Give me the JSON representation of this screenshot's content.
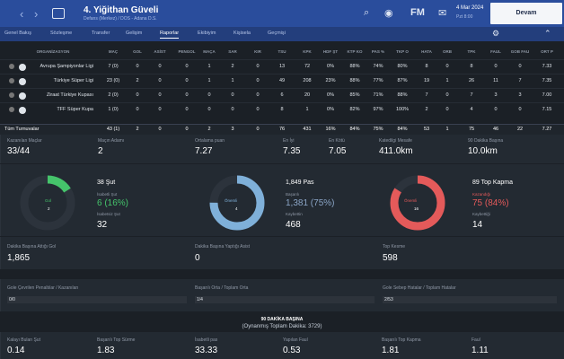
{
  "header": {
    "player_name": "4. Yiğithan Güveli",
    "player_sub": "Defans (Merkez) / DOS - Adana D.S.",
    "date": "4 Mar 2024",
    "time": "Pzt 8:00",
    "continue": "Devam",
    "icons": [
      "back-icon",
      "forward-icon",
      "crest-icon",
      "search-icon",
      "globe-icon",
      "fm-icon",
      "mail-icon",
      "settings-icon"
    ]
  },
  "tabs": [
    "Genel Bakış",
    "Sözleşme",
    "Transfer",
    "Gelişim",
    "Raporlar",
    "Ekibiyim",
    "Kişisela",
    "Geçmişi"
  ],
  "table": {
    "columns": [
      "ORGANİZASYON",
      "MAÇ",
      "GOL",
      "ASİST",
      "PENGOL",
      "MAÇA",
      "SAR",
      "KIR",
      "TSU",
      "KPK",
      "HDF ŞT",
      "KTP KO",
      "PAS %",
      "TKP O",
      "HATA",
      "ORB",
      "TPK",
      "FAUL",
      "GOB FAU",
      "ORT P"
    ],
    "rows": [
      [
        "Avrupa Şampiyonlar Ligi",
        "7 (0)",
        "0",
        "0",
        "0",
        "1",
        "2",
        "0",
        "13",
        "72",
        "0%",
        "88%",
        "74%",
        "80%",
        "8",
        "0",
        "8",
        "0",
        "0",
        "7.33"
      ],
      [
        "Türkiye Süper Ligi",
        "23 (0)",
        "2",
        "0",
        "0",
        "1",
        "1",
        "0",
        "49",
        "208",
        "23%",
        "88%",
        "77%",
        "87%",
        "19",
        "1",
        "26",
        "11",
        "7",
        "7.35"
      ],
      [
        "Ziraat Türkiye Kupası",
        "2 (0)",
        "0",
        "0",
        "0",
        "0",
        "0",
        "0",
        "6",
        "20",
        "0%",
        "85%",
        "71%",
        "88%",
        "7",
        "0",
        "7",
        "3",
        "3",
        "7.00"
      ],
      [
        "TFF Süper Kupa",
        "1 (0)",
        "0",
        "0",
        "0",
        "0",
        "0",
        "0",
        "8",
        "1",
        "0%",
        "82%",
        "97%",
        "100%",
        "2",
        "0",
        "4",
        "0",
        "0",
        "7.15"
      ]
    ],
    "total": [
      "Tüm Turnuvalar",
      "43 (1)",
      "2",
      "0",
      "0",
      "2",
      "3",
      "0",
      "76",
      "431",
      "16%",
      "84%",
      "75%",
      "84%",
      "53",
      "1",
      "75",
      "46",
      "22",
      "7.27"
    ]
  },
  "stats1": [
    {
      "label": "Kazanılan Maçlar",
      "value": "33/44"
    },
    {
      "label": "Maçın Adamı",
      "value": "2"
    },
    {
      "label": "Ortalama puan",
      "value": "7.27"
    },
    {
      "label": "En İyi",
      "value": "7.35"
    },
    {
      "label": "En Kötü",
      "value": "7.05"
    },
    {
      "label": "Katedilgi Mesafe",
      "value": "411.0km"
    },
    {
      "label": "90 Dakika Başına",
      "value": "10.0km"
    }
  ],
  "donuts": [
    {
      "title": "Gol",
      "count": "2",
      "head": "38 Şut",
      "g_label": "İsabetli Şut",
      "g_value": "6 (16%)",
      "b_label": "İsabetsiz Şut",
      "b_value": "32",
      "color": "#45c46b",
      "fill": 0.16
    },
    {
      "title": "Önemli",
      "count": "4",
      "head": "1,849 Pas",
      "g_label": "Başarılı",
      "g_value": "1,381 (75%)",
      "b_label": "Kaybettin",
      "b_value": "468",
      "color": "#7fb0d9",
      "fill": 0.75
    },
    {
      "title": "Önemli",
      "count": "16",
      "head": "89 Top Kapma",
      "g_label": "Kazandığı",
      "g_value": "75 (84%)",
      "b_label": "Kaybettiği",
      "b_value": "14",
      "color": "#e45a5a",
      "fill": 0.84
    }
  ],
  "stats2": [
    {
      "label": "Dakika Başına Attığı Gol",
      "value": "1,865"
    },
    {
      "label": "Dakika Başına Yaptığı Asist",
      "value": "0"
    },
    {
      "label": "Top Kesme",
      "value": "598"
    }
  ],
  "bars": [
    {
      "label": "Gole Çevrilen Penaltılar / Kazanılan",
      "value": "0/0"
    },
    {
      "label": "Başarılı Orta / Toplam Orta",
      "value": "1/4"
    },
    {
      "label": "Gole Sebep Hatalar / Toplam Hatalar",
      "value": "2/53"
    }
  ],
  "per90": {
    "title": "90 DAKİKA BAŞINA",
    "subtitle": "(Oynanmış Toplam Dakika: 3729)"
  },
  "bottom_stats": [
    {
      "label": "Kalayı Bulan Şut",
      "value": "0.14"
    },
    {
      "label": "Başarılı Top Sürme",
      "value": "1.83"
    },
    {
      "label": "İsabetli pas",
      "value": "33.33"
    },
    {
      "label": "Yapılan Faul",
      "value": "0.53"
    },
    {
      "label": "Başarılı Top Kapma",
      "value": "1.81"
    },
    {
      "label": "Faul",
      "value": "1.11"
    }
  ]
}
